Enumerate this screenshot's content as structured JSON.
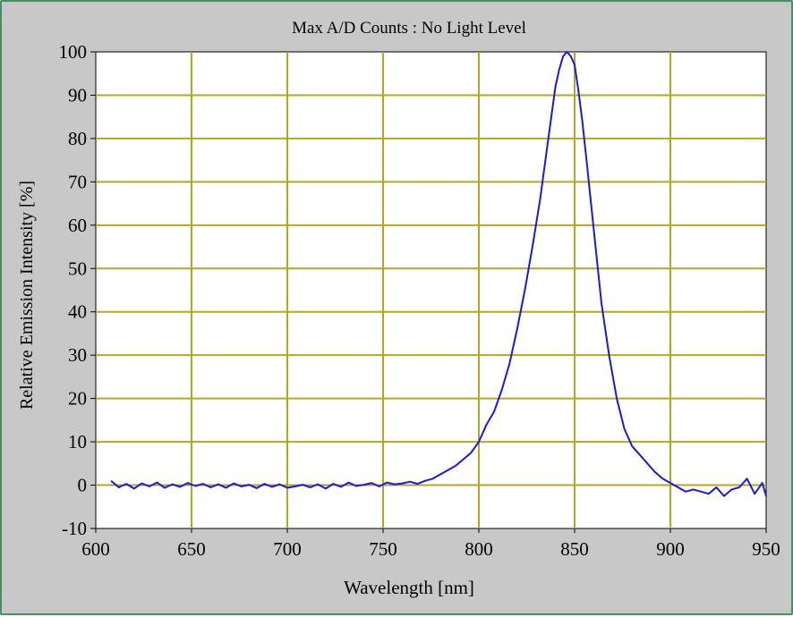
{
  "chart_data": {
    "type": "line",
    "title": "Max A/D Counts : No Light Level",
    "xlabel": "Wavelength [nm]",
    "ylabel": "Relative Emission Intensity [%]",
    "xlim": [
      600,
      950
    ],
    "ylim": [
      -10,
      100
    ],
    "xticks": [
      "600",
      "650",
      "700",
      "750",
      "800",
      "850",
      "900",
      "950"
    ],
    "yticks": [
      "-10",
      "0",
      "10",
      "20",
      "30",
      "40",
      "50",
      "60",
      "70",
      "80",
      "90",
      "100"
    ],
    "grid": true,
    "colors": {
      "line": "#1a1adc",
      "grid": "#b7a620",
      "plot_bg": "#ffffff",
      "frame_bg": "#c8c8c8"
    },
    "series": [
      {
        "x": [
          608,
          612,
          616,
          620,
          624,
          628,
          632,
          636,
          640,
          644,
          648,
          652,
          656,
          660,
          664,
          668,
          672,
          676,
          680,
          684,
          688,
          692,
          696,
          700,
          704,
          708,
          712,
          716,
          720,
          724,
          728,
          732,
          736,
          740,
          744,
          748,
          752,
          756,
          760,
          764,
          768,
          772,
          776,
          780,
          784,
          788,
          792,
          796,
          800,
          804,
          808,
          812,
          816,
          820,
          824,
          828,
          832,
          836,
          840,
          842,
          844,
          846,
          848,
          850,
          852,
          854,
          856,
          860,
          864,
          868,
          872,
          876,
          880,
          884,
          888,
          892,
          896,
          900,
          904,
          908,
          912,
          916,
          920,
          924,
          928,
          932,
          936,
          940,
          944,
          948,
          950
        ],
        "y": [
          1,
          -0.5,
          0.3,
          -0.8,
          0.4,
          -0.3,
          0.6,
          -0.6,
          0.2,
          -0.4,
          0.5,
          -0.2,
          0.3,
          -0.5,
          0.2,
          -0.6,
          0.4,
          -0.3,
          0.1,
          -0.7,
          0.3,
          -0.4,
          0.2,
          -0.6,
          -0.3,
          0.1,
          -0.5,
          0.2,
          -0.8,
          0.3,
          -0.4,
          0.6,
          -0.2,
          0.1,
          0.5,
          -0.3,
          0.6,
          0.2,
          0.4,
          0.8,
          0.3,
          1,
          1.5,
          2.5,
          3.5,
          4.5,
          6,
          7.5,
          10,
          14,
          17,
          22,
          28,
          36,
          45,
          55,
          66,
          79,
          92,
          96,
          99,
          100,
          99,
          97,
          91,
          84,
          76,
          59,
          42,
          30,
          20,
          13,
          9,
          7,
          5,
          3,
          1.5,
          0.5,
          -0.5,
          -1.5,
          -1,
          -1.5,
          -2,
          -0.5,
          -2.5,
          -1,
          -0.5,
          1.5,
          -2,
          0.5,
          -2.5
        ]
      }
    ]
  }
}
